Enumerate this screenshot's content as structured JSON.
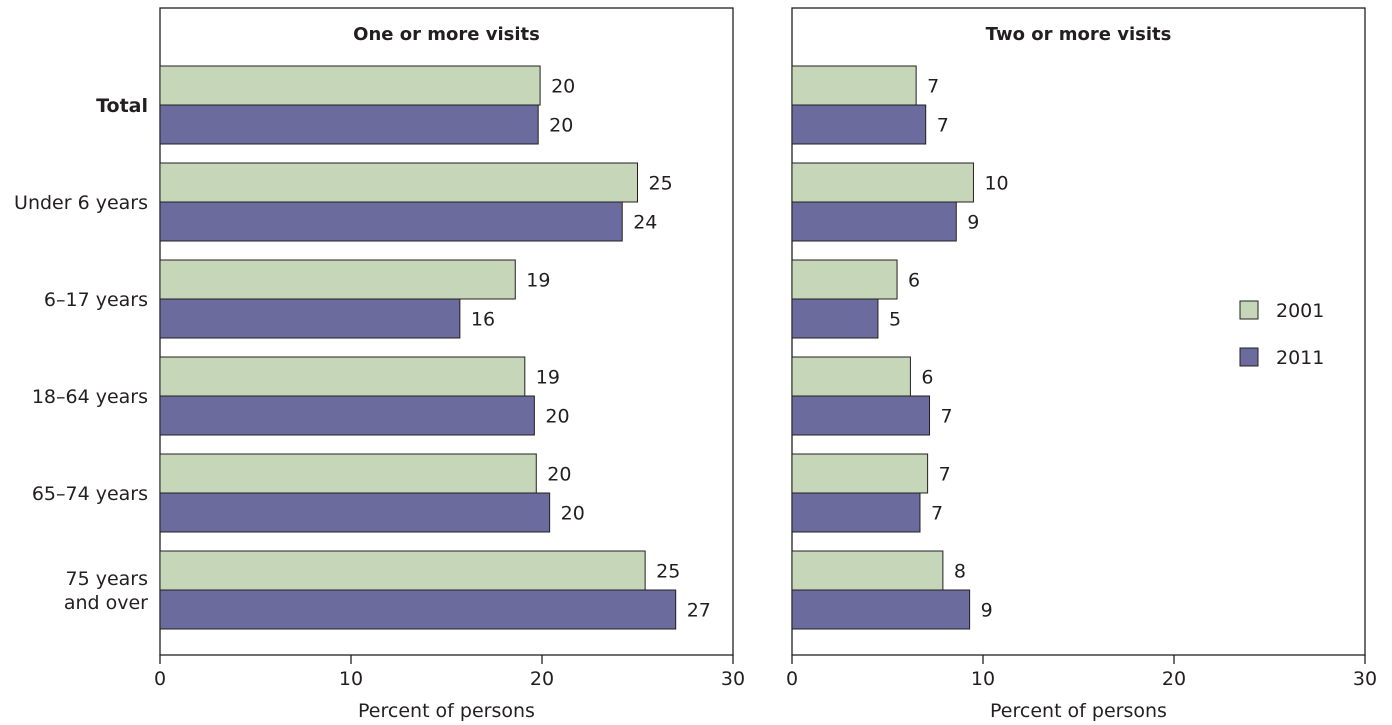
{
  "chart_data": [
    {
      "type": "bar",
      "orientation": "horizontal",
      "panel_title": "One or more visits",
      "xlabel": "Percent of persons",
      "xlim": [
        0,
        30
      ],
      "xticks": [
        0,
        10,
        20,
        30
      ],
      "categories": [
        "Total",
        "Under 6 years",
        "6–17 years",
        "18–64 years",
        "65–74 years",
        "75 years and over"
      ],
      "series": [
        {
          "name": "2001",
          "values": [
            20,
            25,
            19,
            19,
            20,
            25
          ],
          "plotted": [
            19.9,
            25.0,
            18.6,
            19.1,
            19.7,
            25.4
          ]
        },
        {
          "name": "2011",
          "values": [
            20,
            24,
            16,
            20,
            20,
            27
          ],
          "plotted": [
            19.8,
            24.2,
            15.7,
            19.6,
            20.4,
            27.0
          ]
        }
      ]
    },
    {
      "type": "bar",
      "orientation": "horizontal",
      "panel_title": "Two or more visits",
      "xlabel": "Percent of persons",
      "xlim": [
        0,
        30
      ],
      "xticks": [
        0,
        10,
        20,
        30
      ],
      "categories": [
        "Total",
        "Under 6 years",
        "6–17 years",
        "18–64 years",
        "65–74 years",
        "75 years and over"
      ],
      "series": [
        {
          "name": "2001",
          "values": [
            7,
            10,
            6,
            6,
            7,
            8
          ],
          "plotted": [
            6.5,
            9.5,
            5.5,
            6.2,
            7.1,
            7.9
          ]
        },
        {
          "name": "2011",
          "values": [
            7,
            9,
            5,
            7,
            7,
            9
          ],
          "plotted": [
            7.0,
            8.6,
            4.5,
            7.2,
            6.7,
            9.3
          ]
        }
      ]
    }
  ],
  "category_labels": [
    {
      "lines": [
        "Total"
      ],
      "bold": true
    },
    {
      "lines": [
        "Under 6 years"
      ],
      "bold": false
    },
    {
      "lines": [
        "6–17 years"
      ],
      "bold": false
    },
    {
      "lines": [
        "18–64 years"
      ],
      "bold": false
    },
    {
      "lines": [
        "65–74 years"
      ],
      "bold": false
    },
    {
      "lines": [
        "75 years",
        "and over"
      ],
      "bold": false
    }
  ],
  "legend": {
    "placement": "right",
    "items": [
      "2001",
      "2011"
    ]
  },
  "colors": {
    "2001": "#c6d7b9",
    "2011": "#6b6b9d",
    "axis": "#231f20",
    "text": "#231f20"
  }
}
